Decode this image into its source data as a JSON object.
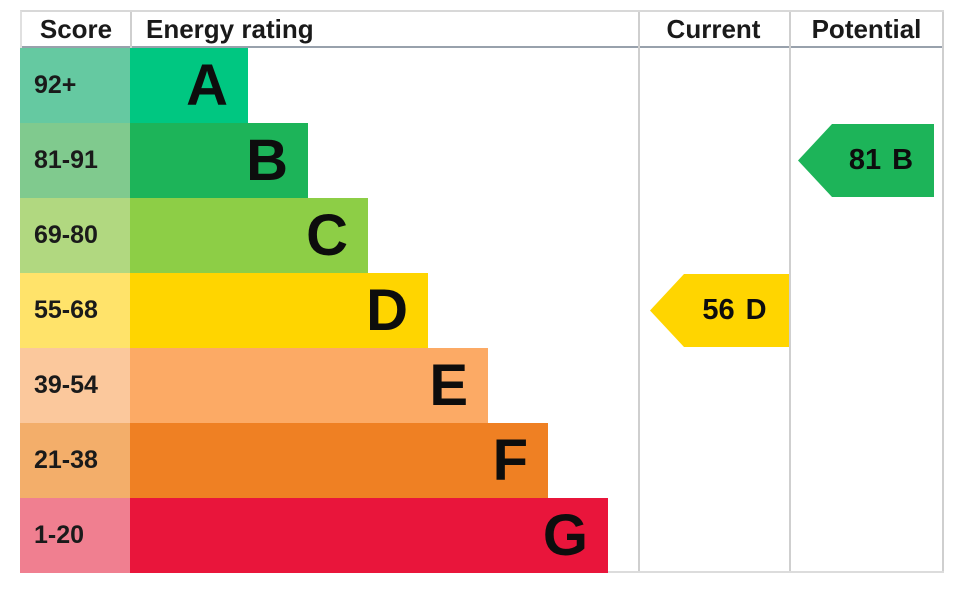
{
  "header": {
    "score": "Score",
    "energy_rating": "Energy rating",
    "current": "Current",
    "potential": "Potential"
  },
  "bands": [
    {
      "score": "92+",
      "letter": "A",
      "color": "#00c781",
      "tint": "#65c9a1"
    },
    {
      "score": "81-91",
      "letter": "B",
      "color": "#1db459",
      "tint": "#80ca8e"
    },
    {
      "score": "69-80",
      "letter": "C",
      "color": "#8dce46",
      "tint": "#b1d880"
    },
    {
      "score": "55-68",
      "letter": "D",
      "color": "#ffd500",
      "tint": "#ffe36a"
    },
    {
      "score": "39-54",
      "letter": "E",
      "color": "#fcaa65",
      "tint": "#fbc89c"
    },
    {
      "score": "21-38",
      "letter": "F",
      "color": "#ef8023",
      "tint": "#f3ae6a"
    },
    {
      "score": "1-20",
      "letter": "G",
      "color": "#e9153b",
      "tint": "#f07f90"
    }
  ],
  "current": {
    "value": "56",
    "letter": "D",
    "color": "#ffd500",
    "band_index": 3
  },
  "potential": {
    "value": "81",
    "letter": "B",
    "color": "#1db459",
    "band_index": 1
  },
  "chart_data": {
    "type": "bar",
    "title": "EPC energy rating chart",
    "columns": [
      "Score",
      "Energy rating",
      "Current",
      "Potential"
    ],
    "categories": [
      "A",
      "B",
      "C",
      "D",
      "E",
      "F",
      "G"
    ],
    "score_ranges": [
      "92+",
      "81-91",
      "69-80",
      "55-68",
      "39-54",
      "21-38",
      "1-20"
    ],
    "band_colors": [
      "#00c781",
      "#1db459",
      "#8dce46",
      "#ffd500",
      "#fcaa65",
      "#ef8023",
      "#e9153b"
    ],
    "bar_orientation": "horizontal-staircase",
    "current": {
      "score": 56,
      "rating": "D"
    },
    "potential": {
      "score": 81,
      "rating": "B"
    },
    "legend_position": "none",
    "grid": false
  }
}
